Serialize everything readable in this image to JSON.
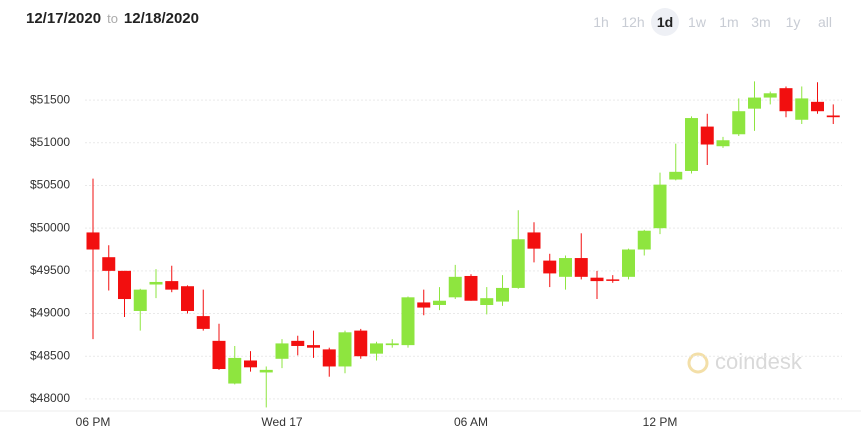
{
  "header": {
    "from": "12/17/2020",
    "to_word": "to",
    "to": "12/18/2020",
    "ranges": [
      "1h",
      "12h",
      "1d",
      "1w",
      "1m",
      "3m",
      "1y",
      "all"
    ],
    "selected_range": "1d"
  },
  "watermark": "coindesk",
  "chart_data": {
    "type": "candlestick",
    "categories": [
      "06 PM",
      null,
      null,
      null,
      null,
      null,
      null,
      null,
      null,
      null,
      null,
      null,
      "Wed 17",
      null,
      null,
      null,
      null,
      null,
      null,
      null,
      null,
      null,
      null,
      null,
      "06 AM",
      null,
      null,
      null,
      null,
      null,
      null,
      null,
      null,
      null,
      null,
      null,
      "12 PM",
      null,
      null,
      null,
      null,
      null,
      null,
      null,
      null,
      null,
      null,
      null
    ],
    "open": [
      49950,
      49660,
      49500,
      49030,
      49340,
      49380,
      49320,
      48970,
      48680,
      48180,
      48450,
      48310,
      48470,
      48680,
      48630,
      48580,
      48380,
      48800,
      48530,
      48630,
      48630,
      49130,
      49100,
      49190,
      49440,
      49100,
      49140,
      49300,
      49950,
      49620,
      49430,
      49650,
      49420,
      49400,
      49430,
      49750,
      50000,
      50570,
      50670,
      51190,
      50960,
      51100,
      51400,
      51530,
      51640,
      51270,
      51480,
      51320
    ],
    "high": [
      50580,
      49800,
      49500,
      49290,
      49520,
      49560,
      49330,
      49280,
      48880,
      48620,
      48560,
      48380,
      48700,
      48740,
      48800,
      48600,
      48800,
      48820,
      48670,
      48700,
      49200,
      49280,
      49310,
      49570,
      49460,
      49310,
      49450,
      50210,
      50070,
      49700,
      49680,
      49940,
      49500,
      49450,
      49760,
      49980,
      50650,
      50990,
      51310,
      51340,
      51070,
      51520,
      51720,
      51600,
      51660,
      51660,
      51710,
      51450
    ],
    "low": [
      48700,
      49270,
      48960,
      48800,
      49180,
      49250,
      49000,
      48800,
      48340,
      48170,
      48320,
      47900,
      48360,
      48510,
      48480,
      48260,
      48300,
      48470,
      48450,
      48600,
      48600,
      48980,
      49040,
      49170,
      49150,
      48990,
      49090,
      49290,
      49600,
      49310,
      49280,
      49400,
      49170,
      49360,
      49400,
      49680,
      49930,
      50560,
      50640,
      50740,
      50940,
      51080,
      51140,
      51450,
      51300,
      51220,
      51340,
      51220
    ],
    "close": [
      49750,
      49500,
      49170,
      49280,
      49370,
      49280,
      49030,
      48820,
      48350,
      48480,
      48370,
      48340,
      48650,
      48620,
      48600,
      48380,
      48780,
      48500,
      48650,
      48650,
      49190,
      49070,
      49150,
      49430,
      49150,
      49180,
      49300,
      49870,
      49760,
      49470,
      49650,
      49430,
      49380,
      49390,
      49750,
      49970,
      50510,
      50660,
      51290,
      50980,
      51030,
      51370,
      51530,
      51580,
      51370,
      51520,
      51370,
      51300
    ],
    "up_color": "#8ee53f",
    "down_color": "#f20f0f",
    "ylim": [
      47870,
      51970
    ],
    "yticks": [
      {
        "value": 48000,
        "label": "$48000"
      },
      {
        "value": 48500,
        "label": "$48500"
      },
      {
        "value": 49000,
        "label": "$49000"
      },
      {
        "value": 49500,
        "label": "$49500"
      },
      {
        "value": 50000,
        "label": "$50000"
      },
      {
        "value": 50500,
        "label": "$50500"
      },
      {
        "value": 51000,
        "label": "$51000"
      },
      {
        "value": 51500,
        "label": "$51500"
      }
    ],
    "grid": true
  }
}
